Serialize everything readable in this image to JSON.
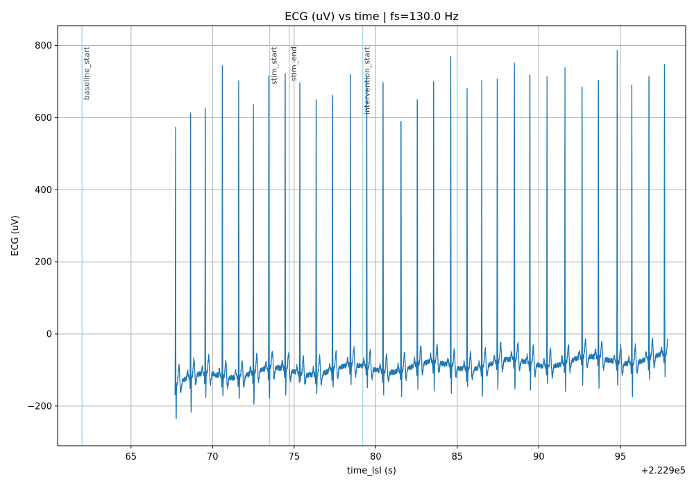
{
  "chart_data": {
    "type": "line",
    "title": "ECG (uV) vs time | fs=130.0 Hz",
    "xlabel": "time_lsl (s)",
    "ylabel": "ECG (uV)",
    "x_offset_label": "+2.229e5",
    "xlim": [
      60.5,
      99.0
    ],
    "ylim": [
      -310,
      855
    ],
    "x_ticks": [
      65,
      70,
      75,
      80,
      85,
      90,
      95
    ],
    "x_tick_labels": [
      "65",
      "70",
      "75",
      "80",
      "85",
      "90",
      "95"
    ],
    "y_ticks": [
      -200,
      0,
      200,
      400,
      600,
      800
    ],
    "y_tick_labels": [
      "−200",
      "0",
      "200",
      "400",
      "600",
      "800"
    ],
    "grid": true,
    "line_color": "#1f77b4",
    "event_color": "#add8e6",
    "events": [
      {
        "name": "baseline_start",
        "t": 62.0
      },
      {
        "name": "stim_start",
        "t": 73.5
      },
      {
        "name": "stim_end",
        "t": 74.7
      },
      {
        "name": "intervention_start",
        "t": 79.2
      }
    ],
    "signal": {
      "t_start": 67.7,
      "t_end": 97.9,
      "r_peaks": [
        {
          "t": 67.73,
          "amp": 580,
          "min": -258
        },
        {
          "t": 68.65,
          "amp": 686,
          "min": -240
        },
        {
          "t": 69.55,
          "amp": 697,
          "min": -185
        },
        {
          "t": 70.6,
          "amp": 742,
          "min": -182
        },
        {
          "t": 71.6,
          "amp": 707,
          "min": -190
        },
        {
          "t": 72.5,
          "amp": 640,
          "min": -215
        },
        {
          "t": 73.45,
          "amp": 790,
          "min": -197
        },
        {
          "t": 74.45,
          "amp": 798,
          "min": -190
        },
        {
          "t": 75.35,
          "amp": 770,
          "min": -135
        },
        {
          "t": 76.35,
          "amp": 723,
          "min": -170
        },
        {
          "t": 77.35,
          "amp": 735,
          "min": -160
        },
        {
          "t": 78.45,
          "amp": 793,
          "min": -150
        },
        {
          "t": 79.45,
          "amp": 793,
          "min": -165
        },
        {
          "t": 80.45,
          "amp": 770,
          "min": -175
        },
        {
          "t": 81.55,
          "amp": 652,
          "min": -185
        },
        {
          "t": 82.55,
          "amp": 717,
          "min": -160
        },
        {
          "t": 83.55,
          "amp": 776,
          "min": -175
        },
        {
          "t": 84.6,
          "amp": 772,
          "min": -175
        },
        {
          "t": 85.6,
          "amp": 686,
          "min": -160
        },
        {
          "t": 86.5,
          "amp": 707,
          "min": -188
        },
        {
          "t": 87.45,
          "amp": 782,
          "min": -165
        },
        {
          "t": 88.5,
          "amp": 753,
          "min": -172
        },
        {
          "t": 89.45,
          "amp": 798,
          "min": -165
        },
        {
          "t": 90.5,
          "amp": 720,
          "min": -150
        },
        {
          "t": 91.6,
          "amp": 740,
          "min": -175
        },
        {
          "t": 92.65,
          "amp": 755,
          "min": -150
        },
        {
          "t": 93.65,
          "amp": 776,
          "min": -160
        },
        {
          "t": 94.8,
          "amp": 787,
          "min": -160
        },
        {
          "t": 95.7,
          "amp": 688,
          "min": -202
        },
        {
          "t": 96.75,
          "amp": 788,
          "min": -135
        },
        {
          "t": 97.7,
          "amp": 746,
          "min": -130
        }
      ]
    }
  }
}
